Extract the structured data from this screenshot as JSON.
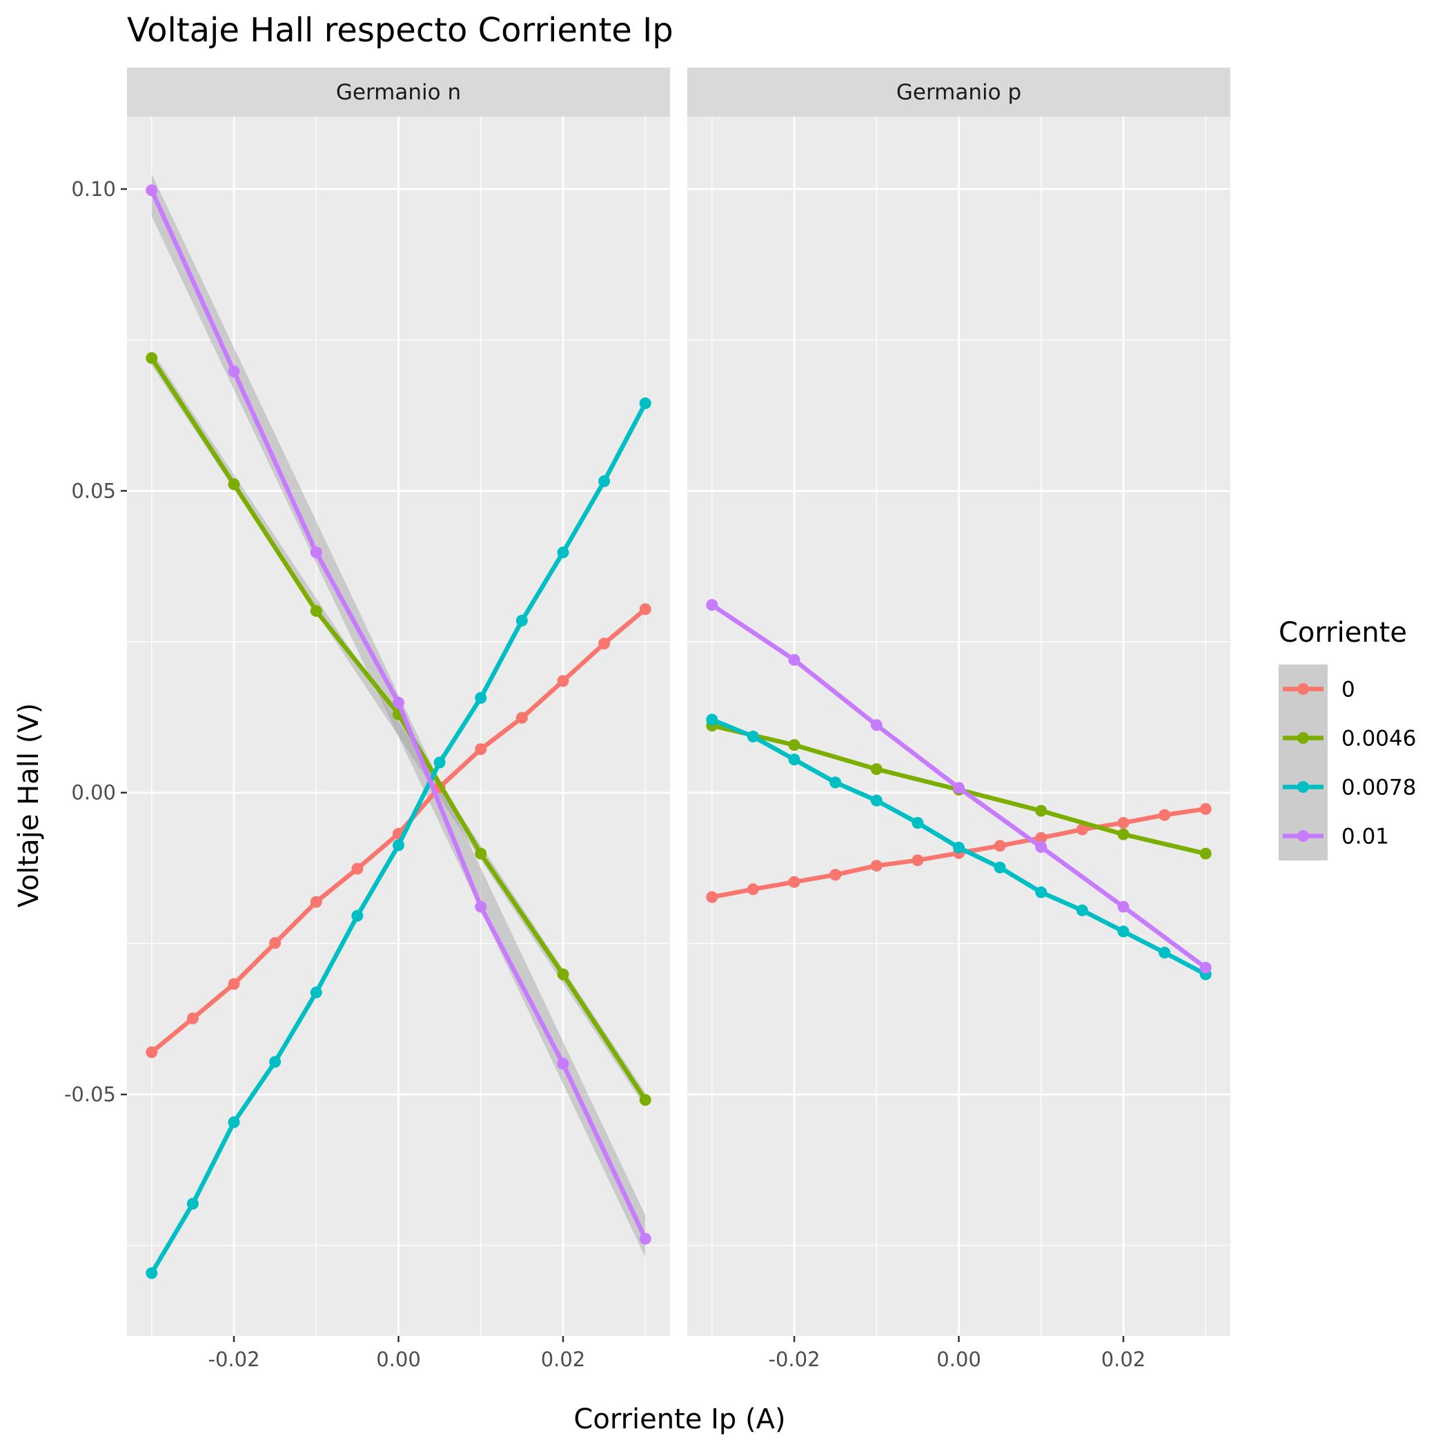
{
  "chart_data": {
    "type": "line",
    "title": "Voltaje Hall respecto Corriente Ip",
    "xlabel": "Corriente Ip (A)",
    "ylabel": "Voltaje Hall (V)",
    "xlim": [
      -0.033,
      0.033
    ],
    "ylim": [
      -0.09,
      0.112
    ],
    "x_ticks": [
      -0.02,
      0.0,
      0.02
    ],
    "x_tick_labels": [
      "-0.02",
      "0.00",
      "0.02"
    ],
    "y_ticks": [
      -0.05,
      0.0,
      0.05,
      0.1
    ],
    "y_tick_labels": [
      "-0.05",
      "0.00",
      "0.05",
      "0.10"
    ],
    "grid": true,
    "legend": {
      "title": "Corriente",
      "position": "right"
    },
    "colors": {
      "0": "#F8766D",
      "0.0046": "#7CAE00",
      "0.0078": "#00BFC4",
      "0.01": "#C77CFF",
      "panel_bg": "#EBEBEB",
      "strip_bg": "#D9D9D9",
      "grid": "#FFFFFF"
    },
    "panels": [
      {
        "strip": "Germanio n",
        "series": [
          {
            "name": "0",
            "color": "#F8766D",
            "x": [
              -0.03,
              -0.025,
              -0.02,
              -0.015,
              -0.01,
              -0.005,
              0.0,
              0.005,
              0.01,
              0.015,
              0.02,
              0.025,
              0.03
            ],
            "y": [
              -0.043,
              -0.0374,
              -0.0317,
              -0.0249,
              -0.0181,
              -0.0126,
              -0.0068,
              0.0009,
              0.0072,
              0.0124,
              0.0185,
              0.0247,
              0.0304
            ]
          },
          {
            "name": "0.0046",
            "color": "#7CAE00",
            "x": [
              -0.03,
              -0.02,
              -0.01,
              0.0,
              0.01,
              0.02,
              0.03
            ],
            "y": [
              0.072,
              0.0511,
              0.0301,
              0.013,
              -0.0101,
              -0.0301,
              -0.0509
            ],
            "band": {
              "x": [
                -0.03,
                0.03
              ],
              "lo": [
                0.0708,
                -0.0521
              ],
              "hi": [
                0.0732,
                -0.0497
              ]
            }
          },
          {
            "name": "0.0078",
            "color": "#00BFC4",
            "x": [
              -0.03,
              -0.025,
              -0.02,
              -0.015,
              -0.01,
              -0.005,
              0.0,
              0.005,
              0.01,
              0.015,
              0.02,
              0.025,
              0.03
            ],
            "y": [
              -0.0796,
              -0.0681,
              -0.0546,
              -0.0446,
              -0.0331,
              -0.0204,
              -0.0087,
              0.005,
              0.0157,
              0.0285,
              0.0398,
              0.0516,
              0.0645
            ]
          },
          {
            "name": "0.01",
            "color": "#C77CFF",
            "x": [
              -0.03,
              -0.02,
              -0.01,
              0.0,
              0.01,
              0.02,
              0.03
            ],
            "y": [
              0.0998,
              0.0698,
              0.0398,
              0.0149,
              -0.0189,
              -0.0449,
              -0.0739
            ],
            "band": {
              "x": [
                -0.03,
                0.03
              ],
              "lo": [
                0.0955,
                -0.077
              ],
              "hi": [
                0.1025,
                -0.07
              ]
            }
          }
        ]
      },
      {
        "strip": "Germanio p",
        "series": [
          {
            "name": "0",
            "color": "#F8766D",
            "x": [
              -0.03,
              -0.025,
              -0.02,
              -0.015,
              -0.01,
              -0.005,
              0.0,
              0.005,
              0.01,
              0.015,
              0.02,
              0.025,
              0.03
            ],
            "y": [
              -0.0173,
              -0.016,
              -0.0148,
              -0.0136,
              -0.0121,
              -0.0112,
              -0.01,
              -0.0088,
              -0.0075,
              -0.0061,
              -0.005,
              -0.0037,
              -0.0027
            ]
          },
          {
            "name": "0.0046",
            "color": "#7CAE00",
            "x": [
              -0.03,
              -0.02,
              -0.01,
              0.0,
              0.01,
              0.02,
              0.03
            ],
            "y": [
              0.0111,
              0.0079,
              0.0039,
              0.0005,
              -0.003,
              -0.0069,
              -0.0101
            ]
          },
          {
            "name": "0.0078",
            "color": "#00BFC4",
            "x": [
              -0.03,
              -0.025,
              -0.02,
              -0.015,
              -0.01,
              -0.005,
              0.0,
              0.005,
              0.01,
              0.015,
              0.02,
              0.025,
              0.03
            ],
            "y": [
              0.0121,
              0.0093,
              0.0055,
              0.0017,
              -0.0013,
              -0.005,
              -0.0091,
              -0.0124,
              -0.0165,
              -0.0195,
              -0.023,
              -0.0265,
              -0.0301
            ]
          },
          {
            "name": "0.01",
            "color": "#C77CFF",
            "x": [
              -0.03,
              -0.02,
              -0.01,
              0.0,
              0.01,
              0.02,
              0.03
            ],
            "y": [
              0.0311,
              0.022,
              0.0112,
              0.0008,
              -0.009,
              -0.0189,
              -0.029
            ]
          }
        ]
      }
    ]
  }
}
